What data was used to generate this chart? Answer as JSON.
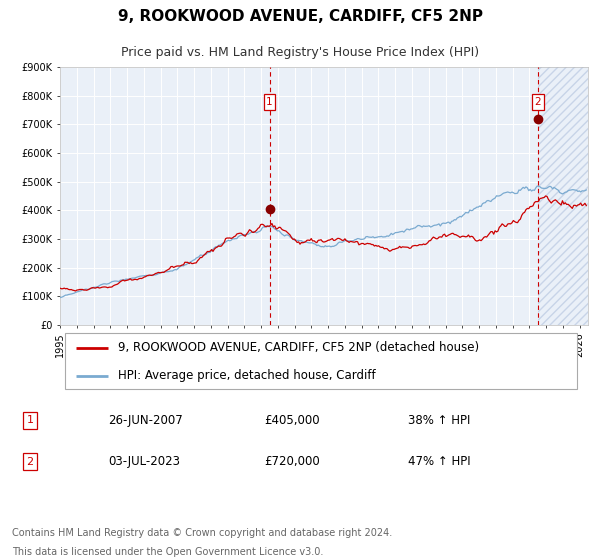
{
  "title": "9, ROOKWOOD AVENUE, CARDIFF, CF5 2NP",
  "subtitle": "Price paid vs. HM Land Registry's House Price Index (HPI)",
  "plot_bg_color": "#eaf0f8",
  "grid_color": "#ffffff",
  "outer_bg": "#f0f4fa",
  "red_line_color": "#cc0000",
  "blue_line_color": "#7aaad0",
  "marker_color": "#880000",
  "vline_color": "#cc0000",
  "hatch_color": "#c8d4e8",
  "ylim": [
    0,
    900000
  ],
  "yticks": [
    0,
    100000,
    200000,
    300000,
    400000,
    500000,
    600000,
    700000,
    800000,
    900000
  ],
  "ytick_labels": [
    "£0",
    "£100K",
    "£200K",
    "£300K",
    "£400K",
    "£500K",
    "£600K",
    "£700K",
    "£800K",
    "£900K"
  ],
  "xlim_start": 1995.0,
  "xlim_end": 2026.5,
  "xtick_years": [
    1995,
    1996,
    1997,
    1998,
    1999,
    2000,
    2001,
    2002,
    2003,
    2004,
    2005,
    2006,
    2007,
    2008,
    2009,
    2010,
    2011,
    2012,
    2013,
    2014,
    2015,
    2016,
    2017,
    2018,
    2019,
    2020,
    2021,
    2022,
    2023,
    2024,
    2025,
    2026
  ],
  "sale1_x": 2007.5,
  "sale1_y": 405000,
  "sale1_label": "1",
  "sale1_date": "26-JUN-2007",
  "sale1_price": "£405,000",
  "sale1_hpi": "38% ↑ HPI",
  "sale2_x": 2023.5,
  "sale2_y": 720000,
  "sale2_label": "2",
  "sale2_date": "03-JUL-2023",
  "sale2_price": "£720,000",
  "sale2_hpi": "47% ↑ HPI",
  "legend_line1": "9, ROOKWOOD AVENUE, CARDIFF, CF5 2NP (detached house)",
  "legend_line2": "HPI: Average price, detached house, Cardiff",
  "footer_line1": "Contains HM Land Registry data © Crown copyright and database right 2024.",
  "footer_line2": "This data is licensed under the Open Government Licence v3.0.",
  "title_fontsize": 11,
  "subtitle_fontsize": 9,
  "tick_fontsize": 7,
  "legend_fontsize": 8.5,
  "footer_fontsize": 7
}
